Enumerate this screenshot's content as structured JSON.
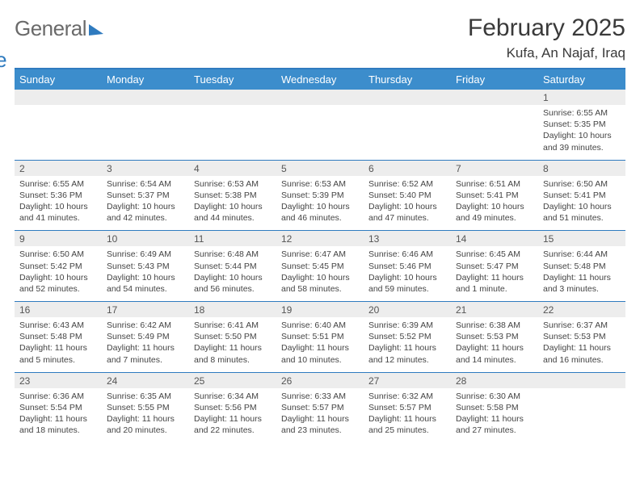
{
  "brand": {
    "part1": "General",
    "part2": "Blue"
  },
  "title": "February 2025",
  "location": "Kufa, An Najaf, Iraq",
  "colors": {
    "header_bg": "#3c8dcc",
    "rule": "#2f7bbf",
    "daynum_bg": "#ededed",
    "text": "#333333",
    "logo_gray": "#6a6a6a",
    "logo_blue": "#2f7bbf"
  },
  "weekdays": [
    "Sunday",
    "Monday",
    "Tuesday",
    "Wednesday",
    "Thursday",
    "Friday",
    "Saturday"
  ],
  "weeks": [
    [
      {
        "n": "",
        "sunrise": "",
        "sunset": "",
        "daylight": ""
      },
      {
        "n": "",
        "sunrise": "",
        "sunset": "",
        "daylight": ""
      },
      {
        "n": "",
        "sunrise": "",
        "sunset": "",
        "daylight": ""
      },
      {
        "n": "",
        "sunrise": "",
        "sunset": "",
        "daylight": ""
      },
      {
        "n": "",
        "sunrise": "",
        "sunset": "",
        "daylight": ""
      },
      {
        "n": "",
        "sunrise": "",
        "sunset": "",
        "daylight": ""
      },
      {
        "n": "1",
        "sunrise": "Sunrise: 6:55 AM",
        "sunset": "Sunset: 5:35 PM",
        "daylight": "Daylight: 10 hours and 39 minutes."
      }
    ],
    [
      {
        "n": "2",
        "sunrise": "Sunrise: 6:55 AM",
        "sunset": "Sunset: 5:36 PM",
        "daylight": "Daylight: 10 hours and 41 minutes."
      },
      {
        "n": "3",
        "sunrise": "Sunrise: 6:54 AM",
        "sunset": "Sunset: 5:37 PM",
        "daylight": "Daylight: 10 hours and 42 minutes."
      },
      {
        "n": "4",
        "sunrise": "Sunrise: 6:53 AM",
        "sunset": "Sunset: 5:38 PM",
        "daylight": "Daylight: 10 hours and 44 minutes."
      },
      {
        "n": "5",
        "sunrise": "Sunrise: 6:53 AM",
        "sunset": "Sunset: 5:39 PM",
        "daylight": "Daylight: 10 hours and 46 minutes."
      },
      {
        "n": "6",
        "sunrise": "Sunrise: 6:52 AM",
        "sunset": "Sunset: 5:40 PM",
        "daylight": "Daylight: 10 hours and 47 minutes."
      },
      {
        "n": "7",
        "sunrise": "Sunrise: 6:51 AM",
        "sunset": "Sunset: 5:41 PM",
        "daylight": "Daylight: 10 hours and 49 minutes."
      },
      {
        "n": "8",
        "sunrise": "Sunrise: 6:50 AM",
        "sunset": "Sunset: 5:41 PM",
        "daylight": "Daylight: 10 hours and 51 minutes."
      }
    ],
    [
      {
        "n": "9",
        "sunrise": "Sunrise: 6:50 AM",
        "sunset": "Sunset: 5:42 PM",
        "daylight": "Daylight: 10 hours and 52 minutes."
      },
      {
        "n": "10",
        "sunrise": "Sunrise: 6:49 AM",
        "sunset": "Sunset: 5:43 PM",
        "daylight": "Daylight: 10 hours and 54 minutes."
      },
      {
        "n": "11",
        "sunrise": "Sunrise: 6:48 AM",
        "sunset": "Sunset: 5:44 PM",
        "daylight": "Daylight: 10 hours and 56 minutes."
      },
      {
        "n": "12",
        "sunrise": "Sunrise: 6:47 AM",
        "sunset": "Sunset: 5:45 PM",
        "daylight": "Daylight: 10 hours and 58 minutes."
      },
      {
        "n": "13",
        "sunrise": "Sunrise: 6:46 AM",
        "sunset": "Sunset: 5:46 PM",
        "daylight": "Daylight: 10 hours and 59 minutes."
      },
      {
        "n": "14",
        "sunrise": "Sunrise: 6:45 AM",
        "sunset": "Sunset: 5:47 PM",
        "daylight": "Daylight: 11 hours and 1 minute."
      },
      {
        "n": "15",
        "sunrise": "Sunrise: 6:44 AM",
        "sunset": "Sunset: 5:48 PM",
        "daylight": "Daylight: 11 hours and 3 minutes."
      }
    ],
    [
      {
        "n": "16",
        "sunrise": "Sunrise: 6:43 AM",
        "sunset": "Sunset: 5:48 PM",
        "daylight": "Daylight: 11 hours and 5 minutes."
      },
      {
        "n": "17",
        "sunrise": "Sunrise: 6:42 AM",
        "sunset": "Sunset: 5:49 PM",
        "daylight": "Daylight: 11 hours and 7 minutes."
      },
      {
        "n": "18",
        "sunrise": "Sunrise: 6:41 AM",
        "sunset": "Sunset: 5:50 PM",
        "daylight": "Daylight: 11 hours and 8 minutes."
      },
      {
        "n": "19",
        "sunrise": "Sunrise: 6:40 AM",
        "sunset": "Sunset: 5:51 PM",
        "daylight": "Daylight: 11 hours and 10 minutes."
      },
      {
        "n": "20",
        "sunrise": "Sunrise: 6:39 AM",
        "sunset": "Sunset: 5:52 PM",
        "daylight": "Daylight: 11 hours and 12 minutes."
      },
      {
        "n": "21",
        "sunrise": "Sunrise: 6:38 AM",
        "sunset": "Sunset: 5:53 PM",
        "daylight": "Daylight: 11 hours and 14 minutes."
      },
      {
        "n": "22",
        "sunrise": "Sunrise: 6:37 AM",
        "sunset": "Sunset: 5:53 PM",
        "daylight": "Daylight: 11 hours and 16 minutes."
      }
    ],
    [
      {
        "n": "23",
        "sunrise": "Sunrise: 6:36 AM",
        "sunset": "Sunset: 5:54 PM",
        "daylight": "Daylight: 11 hours and 18 minutes."
      },
      {
        "n": "24",
        "sunrise": "Sunrise: 6:35 AM",
        "sunset": "Sunset: 5:55 PM",
        "daylight": "Daylight: 11 hours and 20 minutes."
      },
      {
        "n": "25",
        "sunrise": "Sunrise: 6:34 AM",
        "sunset": "Sunset: 5:56 PM",
        "daylight": "Daylight: 11 hours and 22 minutes."
      },
      {
        "n": "26",
        "sunrise": "Sunrise: 6:33 AM",
        "sunset": "Sunset: 5:57 PM",
        "daylight": "Daylight: 11 hours and 23 minutes."
      },
      {
        "n": "27",
        "sunrise": "Sunrise: 6:32 AM",
        "sunset": "Sunset: 5:57 PM",
        "daylight": "Daylight: 11 hours and 25 minutes."
      },
      {
        "n": "28",
        "sunrise": "Sunrise: 6:30 AM",
        "sunset": "Sunset: 5:58 PM",
        "daylight": "Daylight: 11 hours and 27 minutes."
      },
      {
        "n": "",
        "sunrise": "",
        "sunset": "",
        "daylight": ""
      }
    ]
  ]
}
